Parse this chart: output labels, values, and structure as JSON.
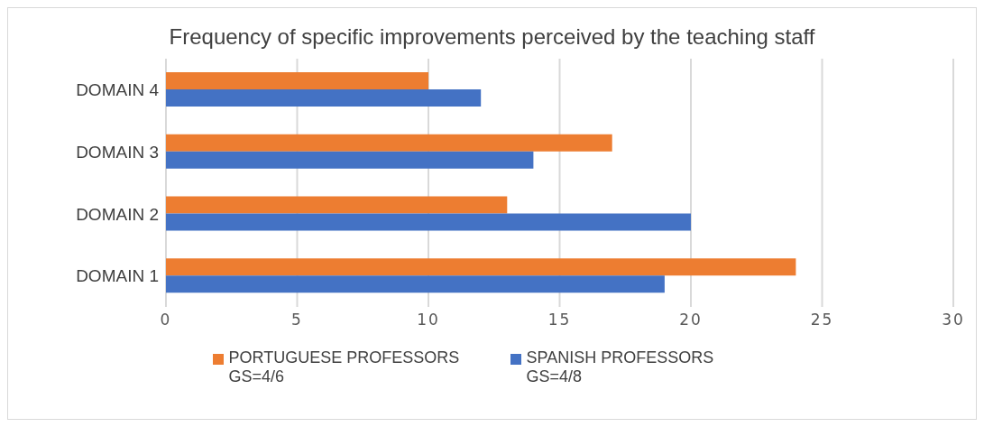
{
  "chart_data": {
    "type": "bar",
    "orientation": "horizontal",
    "title": "Frequency of specific improvements perceived by the teaching staff",
    "categories": [
      "DOMAIN 4",
      "DOMAIN 3",
      "DOMAIN 2",
      "DOMAIN 1"
    ],
    "series": [
      {
        "name": "PORTUGUESE PROFESSORS GS=4/6",
        "color": "#ed7d31",
        "values": [
          10,
          17,
          13,
          24
        ]
      },
      {
        "name": "SPANISH PROFESSORS GS=4/8",
        "color": "#4472c4",
        "values": [
          12,
          14,
          20,
          19
        ]
      }
    ],
    "xlim": [
      0,
      30
    ],
    "xticks": [
      0,
      5,
      10,
      15,
      20,
      25,
      30
    ],
    "grid": "x",
    "legend": "bottom"
  }
}
